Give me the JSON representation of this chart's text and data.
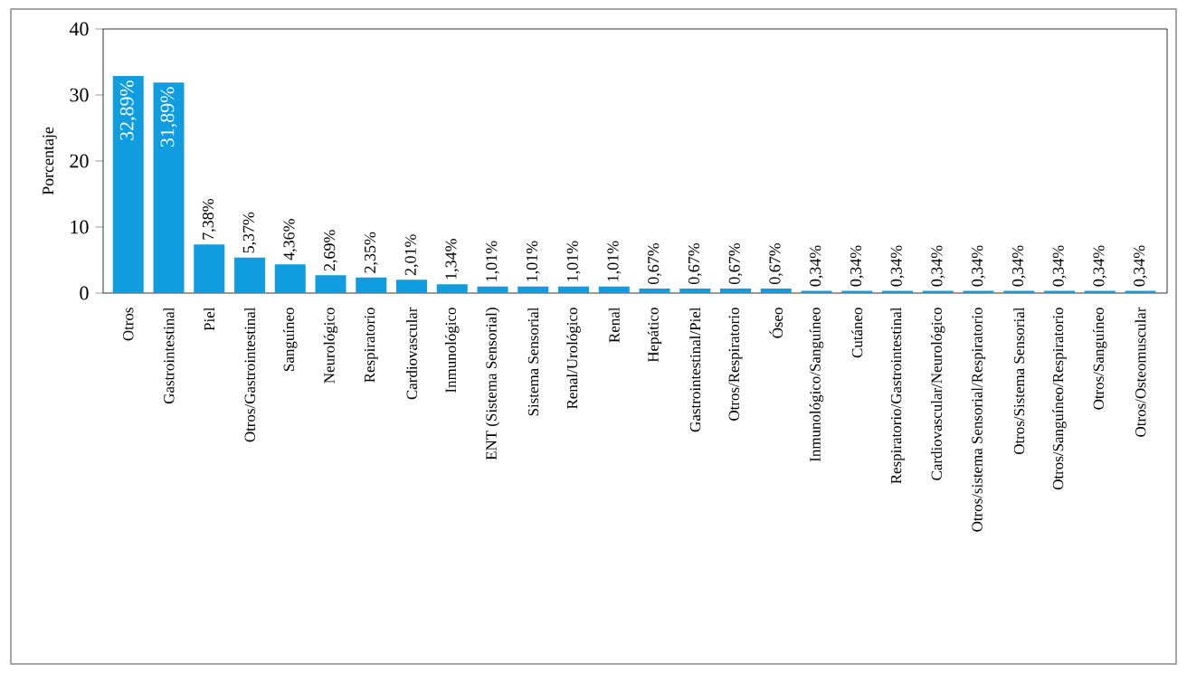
{
  "chart_data": {
    "type": "bar",
    "ylabel": "Porcentaje",
    "categories": [
      "Otros",
      "Gastrointestinal",
      "Piel",
      "Otros/Gastrointestinal",
      "Sanguíneo",
      "Neurológico",
      "Respiratorio",
      "Cardiovascular",
      "Inmunológico",
      "ENT (Sistema Sensorial)",
      "Sistema Sensorial",
      "Renal/Urológico",
      "Renal",
      "Hepático",
      "Gastrointestinal/Piel",
      "Otros/Respiratorio",
      "Óseo",
      "Inmunológico/Sanguíneo",
      "Cutáneo",
      "Respiratorio/Gastrointestinal",
      "Cardiovascular/Neurológico",
      "Otros/sistema Sensorial/Respiratorio",
      "Otros/Sistema Sensorial",
      "Otros/Sanguíneo/Respiratorio",
      "Otros/Sanguíneo",
      "Otros/Osteomuscular"
    ],
    "values": [
      32.89,
      31.89,
      7.38,
      5.37,
      4.36,
      2.69,
      2.35,
      2.01,
      1.34,
      1.01,
      1.01,
      1.01,
      1.01,
      0.67,
      0.67,
      0.67,
      0.67,
      0.34,
      0.34,
      0.34,
      0.34,
      0.34,
      0.34,
      0.34,
      0.34,
      0.34
    ],
    "value_labels": [
      "32,89%",
      "31,89%",
      "7,38%",
      "5,37%",
      "4,36%",
      "2,69%",
      "2,35%",
      "2,01%",
      "1,34%",
      "1,01%",
      "1,01%",
      "1,01%",
      "1,01%",
      "0,67%",
      "0,67%",
      "0,67%",
      "0,67%",
      "0,34%",
      "0,34%",
      "0,34%",
      "0,34%",
      "0,34%",
      "0,34%",
      "0,34%",
      "0,34%",
      "0,34%"
    ],
    "color": "#0f9ddf",
    "ylim": [
      0,
      40
    ],
    "yticks": [
      0,
      10,
      20,
      30,
      40
    ],
    "grid": false
  }
}
